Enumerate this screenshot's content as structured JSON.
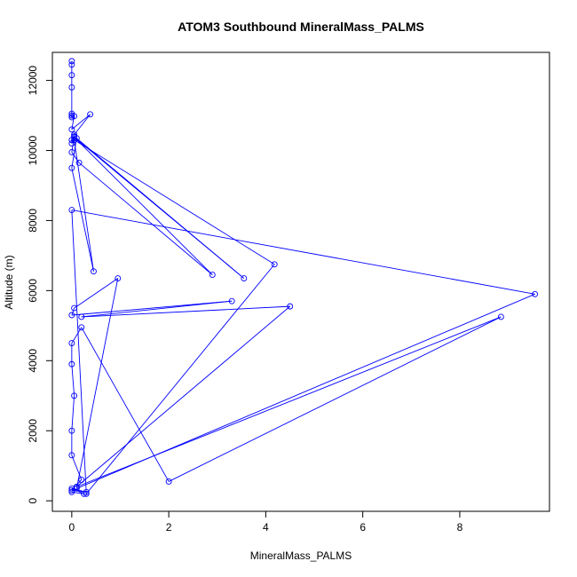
{
  "chart_data": {
    "type": "line",
    "title": "ATOM3 Southbound MineralMass_PALMS",
    "xlabel": "MineralMass_PALMS",
    "ylabel": "Altitude (m)",
    "xlim": [
      -0.4,
      9.85
    ],
    "ylim": [
      -300,
      12800
    ],
    "xticks": [
      0,
      2,
      4,
      6,
      8
    ],
    "yticks": [
      0,
      2000,
      4000,
      6000,
      8000,
      10000,
      12000
    ],
    "grid": false,
    "legend": "none",
    "series_color": "#0000ff",
    "markers": "open-circle",
    "series": [
      {
        "x": [
          0.0,
          0.0,
          0.0,
          0.0,
          0.0,
          0.0,
          0.0,
          0.05,
          0.0,
          0.38,
          0.05,
          0.0,
          0.0,
          0.05,
          0.0,
          0.15,
          2.9,
          0.05,
          3.55,
          0.1,
          0.0,
          0.45,
          0.05,
          4.18,
          0.3,
          0.0,
          9.55,
          0.1,
          0.95,
          0.05,
          0.0,
          3.3,
          0.2,
          4.5,
          0.1,
          8.85,
          2.0,
          0.2,
          0.0,
          0.0,
          0.05,
          0.0,
          0.0,
          0.2,
          0.0,
          0.3,
          0.0,
          0.25,
          0.0
        ],
        "y": [
          12550,
          12450,
          12150,
          11800,
          11050,
          11000,
          10950,
          10980,
          10600,
          11030,
          10450,
          10300,
          10200,
          10400,
          9950,
          9650,
          6450,
          10380,
          6350,
          10350,
          9500,
          6550,
          10300,
          6750,
          200,
          8300,
          5900,
          350,
          6350,
          5500,
          5300,
          5700,
          5250,
          5550,
          400,
          5250,
          550,
          4950,
          4500,
          3900,
          3000,
          2000,
          1300,
          600,
          300,
          250,
          350,
          200,
          250
        ]
      }
    ]
  }
}
